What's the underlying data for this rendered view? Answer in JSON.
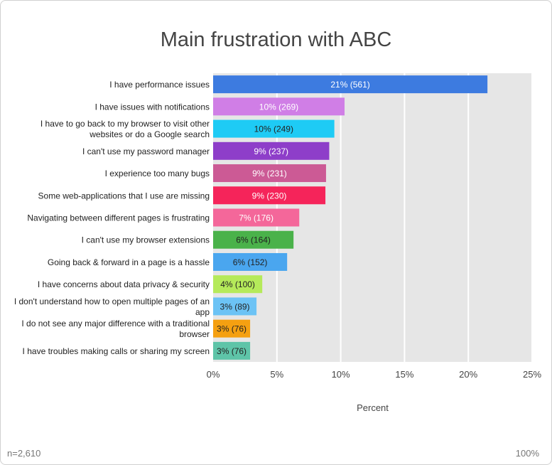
{
  "chart_data": {
    "type": "bar",
    "orientation": "horizontal",
    "title": "Main frustration with ABC",
    "xlabel": "Percent",
    "xlim": [
      0,
      25
    ],
    "xticks": [
      "0%",
      "5%",
      "10%",
      "15%",
      "20%",
      "25%"
    ],
    "xtick_values": [
      0,
      5,
      10,
      15,
      20,
      25
    ],
    "grid": true,
    "categories": [
      "I have performance issues",
      "I have issues with notifications",
      "I have to go back to my browser to visit other websites or do a Google search",
      "I can't use my password manager",
      "I experience too many bugs",
      "Some web-applications that I use are missing",
      "Navigating between different pages is frustrating",
      "I can't use my browser extensions",
      "Going back & forward in a page is a hassle",
      "I have concerns about data privacy & security",
      "I don't understand how to open multiple pages of an app",
      "I do not see any major difference with a traditional browser",
      "I have troubles making calls or sharing my screen"
    ],
    "label_lines": [
      [
        "I have performance issues"
      ],
      [
        "I have issues with notifications"
      ],
      [
        "I have to go back to my browser to visit other",
        "websites or do a Google search"
      ],
      [
        "I can't use my password manager"
      ],
      [
        "I experience too many bugs"
      ],
      [
        "Some web-applications that I use are missing"
      ],
      [
        "Navigating between different pages is frustrating"
      ],
      [
        "I can't use my browser extensions"
      ],
      [
        "Going back & forward in a page is a hassle"
      ],
      [
        "I have concerns about data privacy & security"
      ],
      [
        "I don't understand how to open multiple pages of an",
        "app"
      ],
      [
        "I do not see any major difference with a traditional",
        "browser"
      ],
      [
        "I have troubles making calls or sharing my screen"
      ]
    ],
    "values": [
      21.5,
      10.3,
      9.5,
      9.1,
      8.85,
      8.8,
      6.75,
      6.3,
      5.8,
      3.85,
      3.4,
      2.9,
      2.9
    ],
    "data_labels": [
      "21% (561)",
      "10% (269)",
      "10% (249)",
      "9% (237)",
      "9% (231)",
      "9% (230)",
      "7% (176)",
      "6% (164)",
      "6% (152)",
      "4% (100)",
      "3% (89)",
      "3% (76)",
      "3% (76)"
    ],
    "colors": [
      "#3d7be0",
      "#d07ee6",
      "#1ecbf5",
      "#8e3ec9",
      "#cc5a95",
      "#f5245a",
      "#f4679a",
      "#4ab24a",
      "#4aa6ef",
      "#b5ea5a",
      "#6cc3f5",
      "#f5a011",
      "#5ec4a8"
    ],
    "label_colors": [
      "#ffffff",
      "#ffffff",
      "#222222",
      "#ffffff",
      "#ffffff",
      "#ffffff",
      "#ffffff",
      "#222222",
      "#222222",
      "#222222",
      "#222222",
      "#222222",
      "#222222"
    ],
    "plot_background": "#e6e6e6"
  },
  "footer": {
    "n": "n=2,610",
    "percent": "100%"
  }
}
